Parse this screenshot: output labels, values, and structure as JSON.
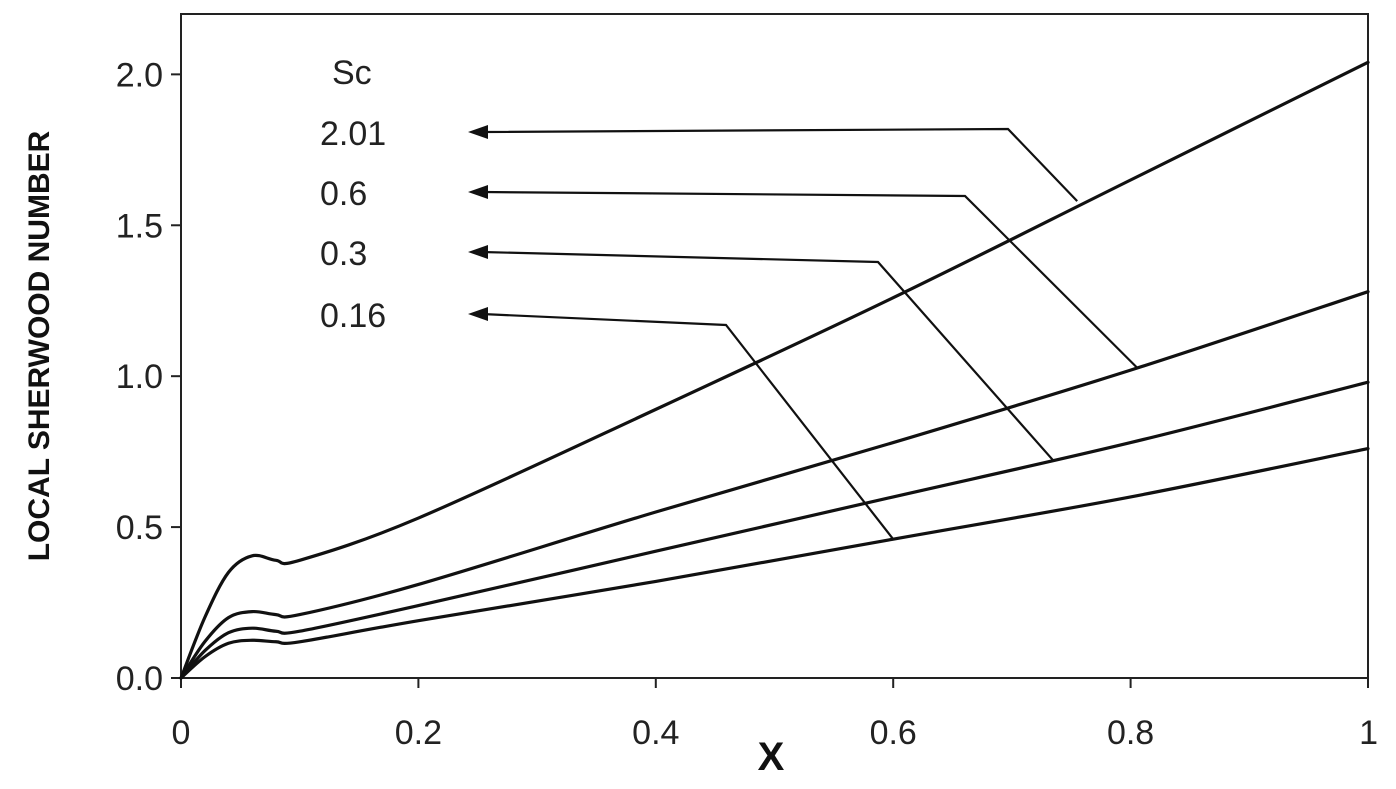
{
  "chart_data": {
    "type": "line",
    "title": "",
    "xlabel": "X",
    "ylabel": "LOCAL SHERWOOD NUMBER",
    "xlim": [
      0,
      1
    ],
    "ylim": [
      0,
      2.2
    ],
    "x_ticks": [
      "0",
      "0.2",
      "0.4",
      "0.6",
      "0.8",
      "1"
    ],
    "y_ticks": [
      "0.0",
      "0.5",
      "1.0",
      "1.5",
      "2.0"
    ],
    "grid": false,
    "legend_title": "Sc",
    "series": [
      {
        "name": "2.01",
        "x": [
          0,
          0.02,
          0.04,
          0.06,
          0.08,
          0.1,
          0.2,
          0.4,
          0.6,
          0.8,
          1.0
        ],
        "y": [
          0,
          0.2,
          0.35,
          0.405,
          0.39,
          0.39,
          0.53,
          0.89,
          1.26,
          1.65,
          2.04
        ]
      },
      {
        "name": "0.6",
        "x": [
          0,
          0.02,
          0.04,
          0.06,
          0.08,
          0.1,
          0.2,
          0.4,
          0.6,
          0.8,
          1.0
        ],
        "y": [
          0,
          0.12,
          0.2,
          0.22,
          0.21,
          0.21,
          0.31,
          0.55,
          0.78,
          1.02,
          1.28
        ]
      },
      {
        "name": "0.3",
        "x": [
          0,
          0.02,
          0.04,
          0.06,
          0.08,
          0.1,
          0.2,
          0.4,
          0.6,
          0.8,
          1.0
        ],
        "y": [
          0,
          0.09,
          0.15,
          0.165,
          0.155,
          0.155,
          0.24,
          0.42,
          0.6,
          0.78,
          0.98
        ]
      },
      {
        "name": "0.16",
        "x": [
          0,
          0.02,
          0.04,
          0.06,
          0.08,
          0.1,
          0.2,
          0.4,
          0.6,
          0.8,
          1.0
        ],
        "y": [
          0,
          0.07,
          0.115,
          0.125,
          0.12,
          0.12,
          0.19,
          0.32,
          0.46,
          0.6,
          0.76
        ]
      }
    ],
    "annotations": [
      {
        "label": "2.01",
        "target": [
          0.755,
          1.58
        ]
      },
      {
        "label": "0.6",
        "target": [
          0.805,
          1.03
        ]
      },
      {
        "label": "0.3",
        "target": [
          0.735,
          0.72
        ]
      },
      {
        "label": "0.16",
        "target": [
          0.6,
          0.46
        ]
      }
    ]
  }
}
